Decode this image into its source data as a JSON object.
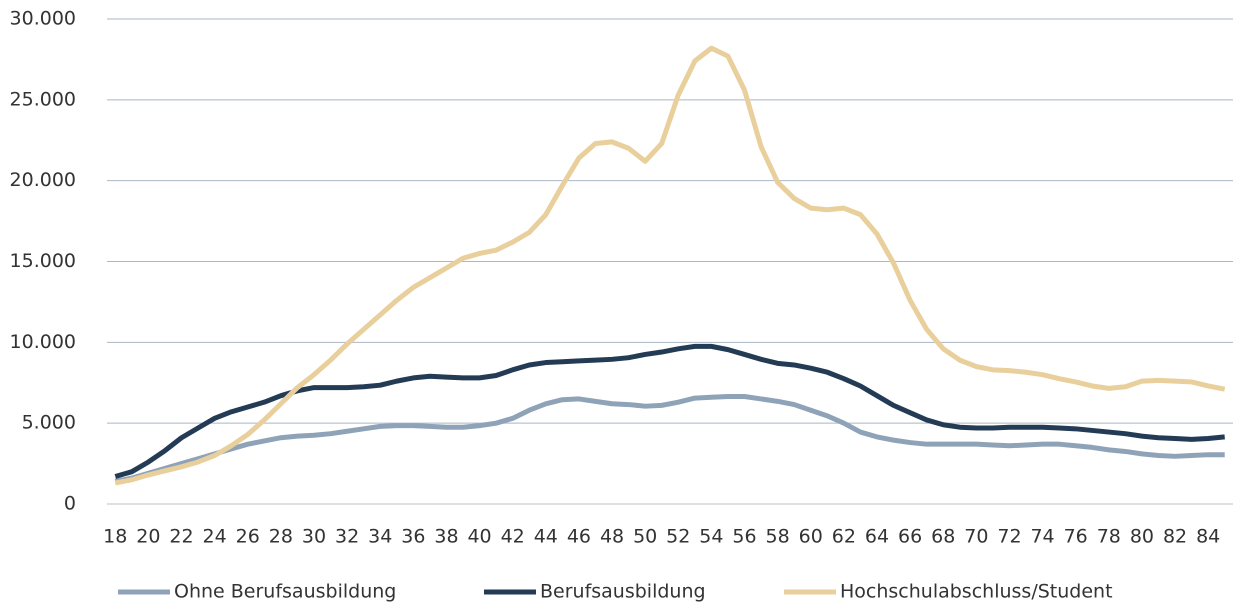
{
  "chart_data": {
    "type": "line",
    "x": [
      18,
      19,
      20,
      21,
      22,
      23,
      24,
      25,
      26,
      27,
      28,
      29,
      30,
      31,
      32,
      33,
      34,
      35,
      36,
      37,
      38,
      39,
      40,
      41,
      42,
      43,
      44,
      45,
      46,
      47,
      48,
      49,
      50,
      51,
      52,
      53,
      54,
      55,
      56,
      57,
      58,
      59,
      60,
      61,
      62,
      63,
      64,
      65,
      66,
      67,
      68,
      69,
      70,
      71,
      72,
      73,
      74,
      75,
      76,
      77,
      78,
      79,
      80,
      81,
      82,
      83,
      84,
      85
    ],
    "xlim": [
      17.5,
      85.5
    ],
    "xticks": [
      18,
      20,
      22,
      24,
      26,
      28,
      30,
      32,
      34,
      36,
      38,
      40,
      42,
      44,
      46,
      48,
      50,
      52,
      54,
      56,
      58,
      60,
      62,
      64,
      66,
      68,
      70,
      72,
      74,
      76,
      78,
      80,
      82,
      84
    ],
    "ylim": [
      0,
      30000
    ],
    "yticks": [
      0,
      {
        "value": 5000,
        "label": "5.000"
      },
      {
        "value": 10000,
        "label": "10.000"
      },
      {
        "value": 15000,
        "label": "15.000"
      },
      {
        "value": 20000,
        "label": "20.000"
      },
      {
        "value": 25000,
        "label": "25.000"
      },
      {
        "value": 30000,
        "label": "30.000"
      }
    ],
    "grid": true,
    "legend": "bottom",
    "series": [
      {
        "name": "Ohne Berufsausbildung",
        "color": "#8fa3b8",
        "values": [
          1400,
          1600,
          1900,
          2200,
          2500,
          2800,
          3100,
          3400,
          3700,
          3900,
          4100,
          4200,
          4250,
          4350,
          4500,
          4650,
          4800,
          4850,
          4850,
          4800,
          4750,
          4750,
          4850,
          5000,
          5300,
          5800,
          6200,
          6450,
          6500,
          6350,
          6200,
          6150,
          6050,
          6100,
          6300,
          6550,
          6600,
          6650,
          6650,
          6500,
          6350,
          6150,
          5800,
          5450,
          5000,
          4450,
          4150,
          3950,
          3800,
          3700,
          3700,
          3700,
          3700,
          3650,
          3600,
          3650,
          3700,
          3700,
          3600,
          3500,
          3350,
          3250,
          3100,
          3000,
          2950,
          3000,
          3050,
          3050
        ]
      },
      {
        "name": "Berufsausbildung",
        "color": "#243b55",
        "values": [
          1700,
          2000,
          2600,
          3300,
          4100,
          4700,
          5300,
          5700,
          6000,
          6300,
          6700,
          7000,
          7200,
          7200,
          7200,
          7250,
          7350,
          7600,
          7800,
          7900,
          7850,
          7800,
          7800,
          7950,
          8300,
          8600,
          8750,
          8800,
          8850,
          8900,
          8950,
          9050,
          9250,
          9400,
          9600,
          9750,
          9750,
          9550,
          9250,
          8950,
          8700,
          8600,
          8400,
          8150,
          7750,
          7300,
          6700,
          6100,
          5650,
          5200,
          4900,
          4750,
          4700,
          4700,
          4750,
          4750,
          4750,
          4700,
          4650,
          4550,
          4450,
          4350,
          4200,
          4100,
          4050,
          4000,
          4050,
          4150
        ]
      },
      {
        "name": "Hochschulabschluss/Student",
        "color": "#e8cf9b",
        "values": [
          1300,
          1500,
          1800,
          2050,
          2300,
          2600,
          3000,
          3600,
          4300,
          5200,
          6200,
          7200,
          8000,
          8900,
          9900,
          10800,
          11700,
          12600,
          13400,
          14000,
          14600,
          15200,
          15500,
          15700,
          16200,
          16800,
          17900,
          19700,
          21400,
          22300,
          22400,
          22000,
          21200,
          22300,
          25300,
          27400,
          28200,
          27700,
          25600,
          22100,
          19900,
          18900,
          18300,
          18200,
          18300,
          17900,
          16700,
          14900,
          12600,
          10800,
          9600,
          8900,
          8500,
          8300,
          8250,
          8150,
          8000,
          7750,
          7550,
          7300,
          7150,
          7250,
          7600,
          7650,
          7600,
          7550,
          7300,
          7100
        ]
      }
    ]
  }
}
